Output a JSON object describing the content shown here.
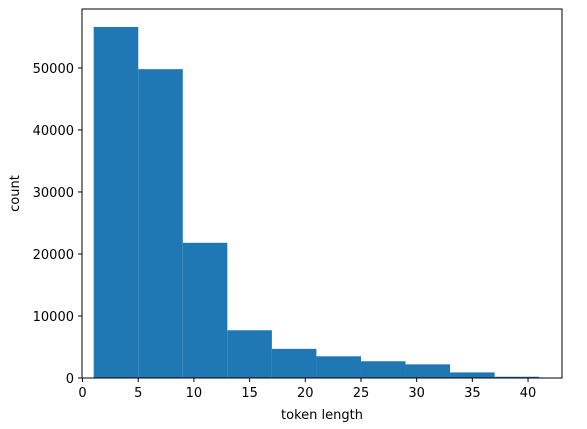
{
  "chart_data": {
    "type": "bar",
    "title": "",
    "xlabel": "token length",
    "ylabel": "count",
    "xlim": [
      -0.05,
      43.05
    ],
    "ylim": [
      0,
      59500
    ],
    "bins": [
      {
        "x0": 1,
        "x1": 5,
        "value": 56600
      },
      {
        "x0": 5,
        "x1": 9,
        "value": 49800
      },
      {
        "x0": 9,
        "x1": 13,
        "value": 21800
      },
      {
        "x0": 13,
        "x1": 17,
        "value": 7700
      },
      {
        "x0": 17,
        "x1": 21,
        "value": 4700
      },
      {
        "x0": 21,
        "x1": 25,
        "value": 3500
      },
      {
        "x0": 25,
        "x1": 29,
        "value": 2700
      },
      {
        "x0": 29,
        "x1": 33,
        "value": 2200
      },
      {
        "x0": 33,
        "x1": 37,
        "value": 900
      },
      {
        "x0": 37,
        "x1": 41,
        "value": 200
      }
    ],
    "xticks": [
      0,
      5,
      10,
      15,
      20,
      25,
      30,
      35,
      40
    ],
    "yticks": [
      0,
      10000,
      20000,
      30000,
      40000,
      50000
    ],
    "bar_color": "#1f77b4",
    "grid": false,
    "legend": "none"
  }
}
